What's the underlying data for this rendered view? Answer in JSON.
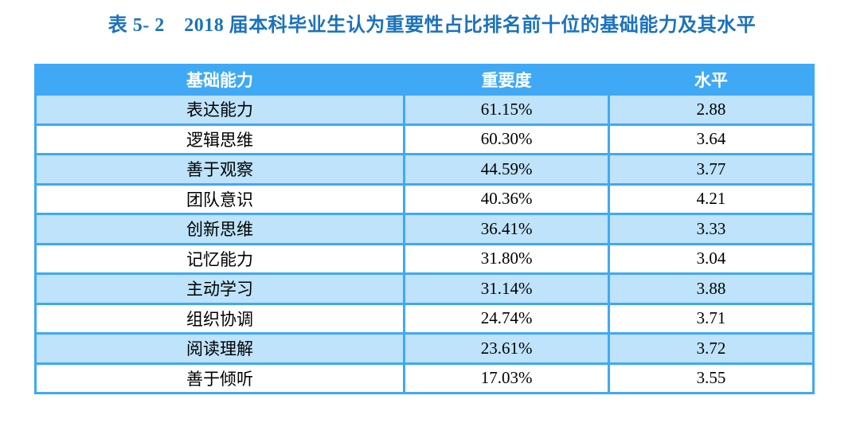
{
  "page": {
    "title": "表 5- 2　2018 届本科毕业生认为重要性占比排名前十位的基础能力及其水平"
  },
  "colors": {
    "title_blue": "#1B72BC",
    "header_blue": "#3FA9F5",
    "border_blue": "#3FA9F5",
    "row_light_blue": "#BEE3FA",
    "row_white": "#FFFFFF",
    "header_text": "#FFFFFF",
    "cell_text": "#000000"
  },
  "table": {
    "columns": [
      {
        "key": "ability",
        "label": "基础能力"
      },
      {
        "key": "importance",
        "label": "重要度"
      },
      {
        "key": "level",
        "label": "水平"
      }
    ],
    "rows": [
      {
        "ability": "表达能力",
        "importance": "61.15%",
        "level": "2.88"
      },
      {
        "ability": "逻辑思维",
        "importance": "60.30%",
        "level": "3.64"
      },
      {
        "ability": "善于观察",
        "importance": "44.59%",
        "level": "3.77"
      },
      {
        "ability": "团队意识",
        "importance": "40.36%",
        "level": "4.21"
      },
      {
        "ability": "创新思维",
        "importance": "36.41%",
        "level": "3.33"
      },
      {
        "ability": "记忆能力",
        "importance": "31.80%",
        "level": "3.04"
      },
      {
        "ability": "主动学习",
        "importance": "31.14%",
        "level": "3.88"
      },
      {
        "ability": "组织协调",
        "importance": "24.74%",
        "level": "3.71"
      },
      {
        "ability": "阅读理解",
        "importance": "23.61%",
        "level": "3.72"
      },
      {
        "ability": "善于倾听",
        "importance": "17.03%",
        "level": "3.55"
      }
    ]
  },
  "chart_data": {
    "type": "table",
    "title": "表 5- 2　2018 届本科毕业生认为重要性占比排名前十位的基础能力及其水平",
    "columns": [
      "基础能力",
      "重要度",
      "水平"
    ],
    "rows": [
      [
        "表达能力",
        "61.15%",
        "2.88"
      ],
      [
        "逻辑思维",
        "60.30%",
        "3.64"
      ],
      [
        "善于观察",
        "44.59%",
        "3.77"
      ],
      [
        "团队意识",
        "40.36%",
        "4.21"
      ],
      [
        "创新思维",
        "36.41%",
        "3.33"
      ],
      [
        "记忆能力",
        "31.80%",
        "3.04"
      ],
      [
        "主动学习",
        "31.14%",
        "3.88"
      ],
      [
        "组织协调",
        "24.74%",
        "3.71"
      ],
      [
        "阅读理解",
        "23.61%",
        "3.72"
      ],
      [
        "善于倾听",
        "17.03%",
        "3.55"
      ]
    ]
  }
}
